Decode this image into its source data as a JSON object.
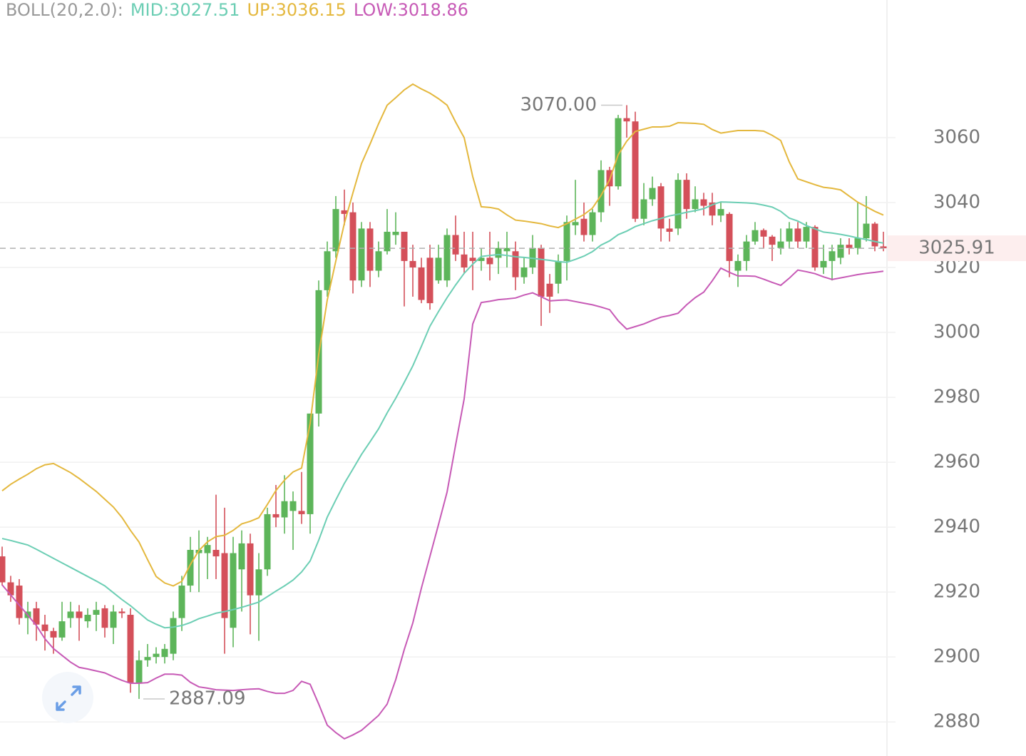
{
  "chart_data": {
    "type": "candlestick",
    "indicator": "BOLL(20,2.0):",
    "up_color": "#5db55a",
    "down_color": "#d4505a",
    "open": [
      2931,
      2923,
      2922,
      2912,
      2915,
      2910,
      2908,
      2906,
      2912,
      2914,
      2911,
      2913,
      2915,
      2909,
      2914,
      2913,
      2892,
      2899,
      2900,
      2900,
      2901,
      2912,
      2922,
      2932,
      2932,
      2933,
      2932,
      2909,
      2927,
      2935,
      2919,
      2927,
      2944,
      2943,
      2945,
      2945,
      2944,
      2975,
      3013,
      3025,
      3037.6,
      3037,
      3016,
      3032,
      3019,
      3025,
      3030,
      3031,
      3022,
      3020,
      3023,
      3016,
      3016,
      3030,
      3024,
      3023,
      3022,
      3023,
      3023,
      3025,
      3025,
      3017,
      3020,
      3026,
      3015,
      3015,
      3022,
      3033,
      3035,
      3030,
      3037,
      3050,
      3045,
      3066,
      3065,
      3035,
      3041,
      3045,
      3032,
      3032,
      3047,
      3038,
      3041,
      3040,
      3036,
      3036.5,
      3019,
      3022,
      3028,
      3031.5,
      3029.5,
      3026,
      3028,
      3032,
      3028,
      3032.5,
      3020,
      3022,
      3023,
      3027,
      3026,
      3029,
      3033.5,
      3026.5
    ],
    "high": [
      2934,
      2925,
      2924,
      2917,
      2917,
      2913,
      2909,
      2917,
      2917,
      2916,
      2915,
      2917,
      2916,
      2916,
      2915,
      2915,
      2902,
      2904,
      2903,
      2904,
      2914,
      2925,
      2937,
      2939,
      2937,
      2950,
      2946,
      2937,
      2939,
      2938,
      2932,
      2946,
      2953,
      2956,
      2951,
      2957,
      2975,
      3016,
      3028,
      3042,
      3044,
      3040,
      3034,
      3034,
      3028,
      3038,
      3037,
      3031,
      3027,
      3023,
      3027,
      3027,
      3032,
      3036,
      3031,
      3031,
      3026,
      3031,
      3028,
      3031,
      3028,
      3023,
      3030,
      3027,
      3018,
      3024,
      3036,
      3047,
      3040,
      3038,
      3053,
      3051,
      3067,
      3070,
      3068,
      3046,
      3048,
      3046,
      3035,
      3049,
      3049,
      3045,
      3043,
      3043,
      3040,
      3037,
      3024,
      3030,
      3034,
      3032,
      3030,
      3032,
      3034,
      3034,
      3034,
      3033,
      3027,
      3027,
      3029,
      3029,
      3040,
      3042,
      3034,
      3031
    ],
    "low": [
      2922,
      2917,
      2910,
      2907,
      2905,
      2902,
      2901,
      2905,
      2909,
      2905,
      2909,
      2908,
      2906,
      2904,
      2912,
      2889,
      2887.09,
      2897,
      2898,
      2898,
      2899,
      2908,
      2920,
      2920,
      2924,
      2924,
      2901,
      2903,
      2914,
      2907,
      2905,
      2925,
      2940,
      2938,
      2933,
      2941,
      2938,
      2971,
      3011,
      3023,
      3033,
      3012,
      3014,
      3014,
      3017,
      3024,
      3027,
      3008,
      3011,
      3009,
      3007,
      3015,
      3014,
      3022,
      3018,
      3013,
      3019,
      3016,
      3018,
      3020,
      3013,
      3015,
      3018,
      3002,
      3006,
      3012,
      3016,
      3030,
      3028,
      3028,
      3034,
      3039,
      3044,
      3060,
      3034,
      3033,
      3039,
      3028,
      3028,
      3030,
      3035,
      3037,
      3036,
      3033,
      3034,
      3017,
      3014,
      3019,
      3027,
      3026,
      3022,
      3024,
      3026,
      3026,
      3026,
      3019,
      3018,
      3016,
      3021,
      3024,
      3024,
      3028,
      3025,
      3025
    ],
    "close": [
      2923,
      2919,
      2912,
      2914,
      2910,
      2908,
      2906,
      2911,
      2914,
      2912,
      2913,
      2914.5,
      2909,
      2914,
      2913.5,
      2892,
      2899,
      2900,
      2901,
      2902.5,
      2912,
      2922,
      2933,
      2933,
      2934.5,
      2931,
      2912,
      2932,
      2935,
      2919,
      2927,
      2944,
      2943,
      2948,
      2948,
      2944,
      2975,
      3013,
      3025,
      3038,
      3036.5,
      3016,
      3032,
      3019,
      3025,
      3031,
      3031,
      3022,
      3020,
      3010,
      3009,
      3023,
      3030,
      3024,
      3020,
      3022,
      3023,
      3021,
      3026,
      3026,
      3017,
      3020,
      3026,
      3011,
      3011,
      3022,
      3034,
      3034,
      3030,
      3037,
      3050,
      3045,
      3066,
      3065,
      3035,
      3041,
      3044.5,
      3032,
      3031,
      3047,
      3038,
      3041,
      3039,
      3036,
      3038,
      3022,
      3022,
      3028,
      3031.5,
      3029.5,
      3027,
      3028,
      3032,
      3028,
      3032.5,
      3020,
      3022,
      3025,
      3027,
      3026,
      3029,
      3033.5,
      3026.5,
      3025.91
    ],
    "series": [
      {
        "name": "MID:3027.51",
        "color": "#6cceb4",
        "values": [
          2936.5,
          2935.9,
          2935.2,
          2934.5,
          2933.2,
          2931.8,
          2930.4,
          2929,
          2927.6,
          2926.2,
          2924.8,
          2923.4,
          2921.9,
          2919.8,
          2917.7,
          2915.8,
          2913.6,
          2911.4,
          2910.1,
          2909,
          2909.2,
          2909.7,
          2910.6,
          2911.8,
          2912.6,
          2913.5,
          2914,
          2914.6,
          2915.3,
          2916.1,
          2916.9,
          2918.6,
          2920.3,
          2921.9,
          2923.7,
          2926.2,
          2929.6,
          2936,
          2943.1,
          2948.4,
          2953.5,
          2957.9,
          2962.4,
          2966.3,
          2970.3,
          2975.2,
          2979.7,
          2984.6,
          2989.7,
          2995.7,
          3001.9,
          3006.4,
          3010.7,
          3014.6,
          3018.2,
          3021,
          3023.4,
          3023.7,
          3024,
          3023.7,
          3023.3,
          3023.1,
          3022.8,
          3022.5,
          3022.2,
          3021.8,
          3021.6,
          3022.5,
          3023.5,
          3024.9,
          3026.9,
          3028.2,
          3030.1,
          3031.2,
          3032.6,
          3033.5,
          3034.4,
          3035.1,
          3035.9,
          3036.4,
          3037,
          3037.5,
          3038.1,
          3039.3,
          3040.2,
          3040.1,
          3040,
          3039.9,
          3039.7,
          3039.2,
          3038.6,
          3037.3,
          3035.2,
          3034.3,
          3032.9,
          3031.9,
          3030.9,
          3030.6,
          3030.2,
          3029.7,
          3029.1,
          3028.6,
          3028,
          3027.51
        ]
      },
      {
        "name": "UP:3036.15",
        "color": "#e4b83e",
        "values": [
          2951.2,
          2953.2,
          2954.8,
          2956.3,
          2958,
          2959.2,
          2959.6,
          2958.2,
          2956.8,
          2955,
          2953,
          2951,
          2948.6,
          2946.2,
          2943,
          2939,
          2935.4,
          2930,
          2924.8,
          2922.8,
          2921.9,
          2923.3,
          2928.5,
          2932.8,
          2935.5,
          2937.1,
          2937.5,
          2939,
          2941,
          2941.8,
          2942.9,
          2947,
          2951.3,
          2954.5,
          2957,
          2958.2,
          2972,
          2993.2,
          3010,
          3022,
          3033.6,
          3043,
          3052,
          3058,
          3064.3,
          3070,
          3072.3,
          3074.7,
          3076.5,
          3075,
          3073.7,
          3072,
          3070,
          3064.8,
          3060,
          3048,
          3038.7,
          3038.5,
          3038,
          3036.2,
          3034.6,
          3034.3,
          3033.9,
          3033.5,
          3032.8,
          3032.3,
          3033.5,
          3034.9,
          3036.3,
          3038.3,
          3042.2,
          3047,
          3054.7,
          3058.9,
          3061.9,
          3062.6,
          3063.3,
          3063.3,
          3063.5,
          3064.6,
          3064.5,
          3064.4,
          3064.1,
          3062.5,
          3061.4,
          3061.8,
          3062.2,
          3062.2,
          3062.2,
          3062,
          3060.7,
          3059.1,
          3052.5,
          3047.3,
          3046.4,
          3045.5,
          3044.7,
          3044.4,
          3043.9,
          3042,
          3040.1,
          3038.7,
          3037.3,
          3036.15
        ]
      },
      {
        "name": "LOW:3018.86",
        "color": "#c75ab6",
        "values": [
          2922.2,
          2919.1,
          2916,
          2912.9,
          2909.7,
          2905.6,
          2902.6,
          2900.5,
          2898.4,
          2896.8,
          2896.3,
          2895.7,
          2895.1,
          2893.9,
          2892.8,
          2891.9,
          2891.9,
          2892.1,
          2893.5,
          2894.7,
          2894.7,
          2894.4,
          2892.2,
          2890.8,
          2890.4,
          2889.9,
          2889.8,
          2889.7,
          2889.9,
          2890.1,
          2890.2,
          2889.4,
          2888.8,
          2888.8,
          2889.7,
          2892.5,
          2891.6,
          2885.5,
          2879,
          2876.7,
          2874.8,
          2876,
          2877.4,
          2879.7,
          2882,
          2885.5,
          2893,
          2902.3,
          2910.5,
          2921.2,
          2931,
          2940.8,
          2950.8,
          2965.3,
          2979.5,
          3002.6,
          3009.2,
          3009.6,
          3010.1,
          3010.3,
          3010.6,
          3011.5,
          3012.2,
          3011,
          3009.7,
          3009.9,
          3010,
          3009.5,
          3009,
          3008.5,
          3007.8,
          3007,
          3003.6,
          3001,
          3001.8,
          3002.6,
          3003.7,
          3004.7,
          3005.2,
          3005.9,
          3008.5,
          3010.7,
          3012.4,
          3015.9,
          3019.8,
          3018.5,
          3017.4,
          3017.4,
          3017.3,
          3016.4,
          3015.4,
          3014.5,
          3016.7,
          3019.2,
          3018.7,
          3018.1,
          3017.1,
          3016.3,
          3016.8,
          3017.3,
          3017.8,
          3018.2,
          3018.5,
          3018.86
        ]
      }
    ],
    "ylim": [
      2869.5,
      3102.4
    ],
    "yticks": [
      2880,
      2900,
      2920,
      2940,
      2960,
      2980,
      3000,
      3020,
      3040,
      3060
    ],
    "grid": true,
    "last_price": {
      "value": 3025.91,
      "label": "3025.91",
      "color": "#d4505a"
    },
    "annotations": [
      {
        "value": 3070,
        "label": "3070.00",
        "of": "high"
      },
      {
        "value": 2887.09,
        "label": "2887.09",
        "of": "low"
      }
    ]
  }
}
